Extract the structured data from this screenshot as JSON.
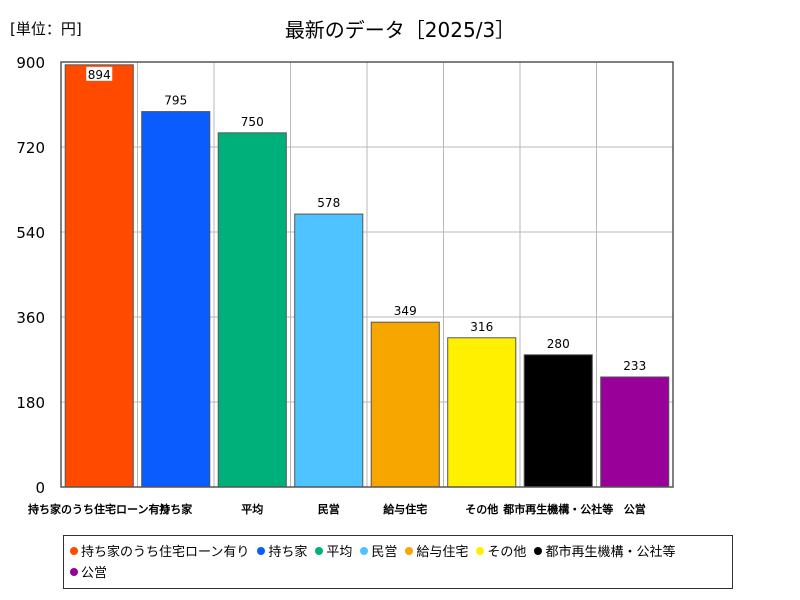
{
  "unit_label": "[単位：円]",
  "chart_data": {
    "type": "bar",
    "title": "最新のデータ［2025/3］",
    "categories": [
      "持ち家のうち住宅ローン有り",
      "持ち家",
      "平均",
      "民営",
      "給与住宅",
      "その他",
      "都市再生機構・公社等",
      "公営"
    ],
    "values": [
      894,
      795,
      750,
      578,
      349,
      316,
      280,
      233
    ],
    "colors": [
      "#ff4a00",
      "#0a5cff",
      "#00b07a",
      "#4fc3ff",
      "#f7a600",
      "#fff000",
      "#000000",
      "#990099"
    ],
    "xlabel": "",
    "ylabel": "",
    "ylim": [
      0,
      900
    ],
    "yticks": [
      0,
      180,
      360,
      540,
      720,
      900
    ],
    "grid": true,
    "legend_position": "bottom"
  }
}
